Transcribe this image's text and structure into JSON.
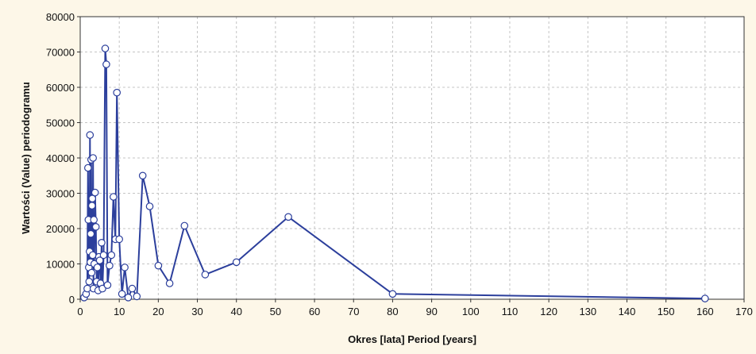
{
  "chart_data": {
    "type": "line",
    "title": "",
    "xlabel": "Okres [lata] Period [years]",
    "ylabel": "Wartości (Value) periodogramu",
    "xlim": [
      0,
      170
    ],
    "ylim": [
      0,
      80000
    ],
    "x_ticks": [
      0,
      10,
      20,
      30,
      40,
      50,
      60,
      70,
      80,
      90,
      100,
      110,
      120,
      130,
      140,
      150,
      160,
      170
    ],
    "y_ticks": [
      0,
      10000,
      20000,
      30000,
      40000,
      50000,
      60000,
      70000,
      80000
    ],
    "grid": true,
    "legend": "none",
    "line_color": "#2c3f9c",
    "marker_fill": "#ffffff",
    "series": [
      {
        "x": [
          1.0,
          1.5,
          1.8,
          2.0,
          2.1,
          2.2,
          2.3,
          2.4,
          2.5,
          2.6,
          2.7,
          2.8,
          2.9,
          3.0,
          3.1,
          3.2,
          3.3,
          3.4,
          3.5,
          3.6,
          3.8,
          4.0,
          4.2,
          4.4,
          4.6,
          4.8,
          5.0,
          5.2,
          5.5,
          5.7,
          6.0,
          6.4,
          6.7,
          7.0,
          7.5,
          8.0,
          8.5,
          9.0,
          9.4,
          10.0,
          10.7,
          11.4,
          12.3,
          13.3,
          14.5,
          16.0,
          17.8,
          20.0,
          22.9,
          26.7,
          32.0,
          40.0,
          53.3,
          80.0,
          160.0
        ],
        "y": [
          500,
          1500,
          3000,
          37200,
          22500,
          9000,
          5000,
          13500,
          46500,
          10500,
          18500,
          39500,
          7500,
          26500,
          28500,
          12500,
          40000,
          3000,
          22500,
          10000,
          30200,
          20500,
          5000,
          9000,
          2500,
          12000,
          11000,
          4500,
          16000,
          3000,
          12500,
          71000,
          66500,
          4000,
          9500,
          12500,
          29000,
          17000,
          58500,
          17000,
          1500,
          9000,
          500,
          3000,
          800,
          35000,
          26300,
          9500,
          4500,
          20800,
          7000,
          10500,
          23300,
          1500,
          200
        ]
      }
    ]
  }
}
